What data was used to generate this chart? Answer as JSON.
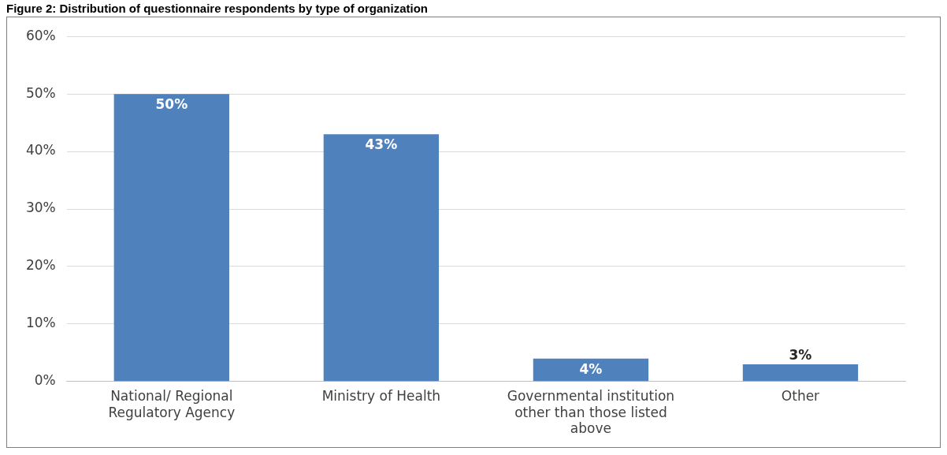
{
  "chart_data": {
    "type": "bar",
    "title": "Figure 2: Distribution of questionnaire respondents by type of organization",
    "categories": [
      "National/ Regional Regulatory Agency",
      "Ministry of Health",
      "Governmental institution other than those listed above",
      "Other"
    ],
    "values": [
      50,
      43,
      4,
      3
    ],
    "value_labels": [
      "50%",
      "43%",
      "4%",
      "3%"
    ],
    "color": "#4f81bd",
    "ylim": [
      0,
      60
    ],
    "yticks": [
      {
        "value": 0,
        "label": "0%"
      },
      {
        "value": 10,
        "label": "10%"
      },
      {
        "value": 20,
        "label": "20%"
      },
      {
        "value": 30,
        "label": "30%"
      },
      {
        "value": 40,
        "label": "40%"
      },
      {
        "value": 50,
        "label": "50%"
      },
      {
        "value": 60,
        "label": "60%"
      }
    ],
    "grid": "y",
    "legend": false
  }
}
